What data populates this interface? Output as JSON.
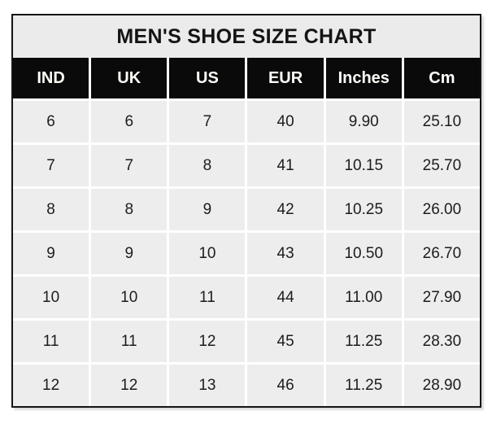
{
  "title": "MEN'S SHOE SIZE CHART",
  "chart_data": {
    "type": "table",
    "title": "MEN'S SHOE SIZE CHART",
    "columns": [
      "IND",
      "UK",
      "US",
      "EUR",
      "Inches",
      "Cm"
    ],
    "rows": [
      [
        "6",
        "6",
        "7",
        "40",
        "9.90",
        "25.10"
      ],
      [
        "7",
        "7",
        "8",
        "41",
        "10.15",
        "25.70"
      ],
      [
        "8",
        "8",
        "9",
        "42",
        "10.25",
        "26.00"
      ],
      [
        "9",
        "9",
        "10",
        "43",
        "10.50",
        "26.70"
      ],
      [
        "10",
        "10",
        "11",
        "44",
        "11.00",
        "27.90"
      ],
      [
        "11",
        "11",
        "12",
        "45",
        "11.25",
        "28.30"
      ],
      [
        "12",
        "12",
        "13",
        "46",
        "11.25",
        "28.90"
      ]
    ]
  },
  "colors": {
    "page_bg": "#ffffff",
    "outer_border": "#141414",
    "title_bg": "#ebebeb",
    "header_bg": "#0a0a0a",
    "header_text": "#fdfdf8",
    "cell_bg": "#ededee",
    "grid_line": "#ffffff",
    "cell_text": "#1c1c1c"
  }
}
